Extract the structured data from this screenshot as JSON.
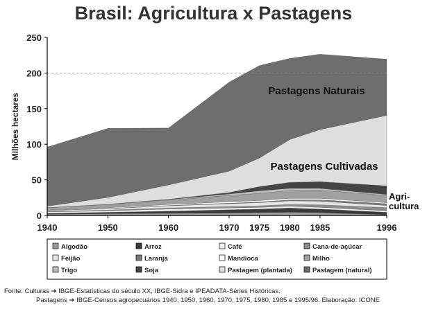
{
  "chart_data": {
    "type": "area",
    "title": "Brasil: Agricultura x Pastagens",
    "ylabel": "Milhões hectares",
    "xlabel": "",
    "x": [
      "1940",
      "1950",
      "1960",
      "1970",
      "1975",
      "1980",
      "1985",
      "1996"
    ],
    "ylim": [
      0,
      250
    ],
    "yticks": [
      "0",
      "50",
      "100",
      "150",
      "200",
      "250"
    ],
    "series": [
      {
        "name": "Algodão",
        "values": [
          1.5,
          2.5,
          3,
          3.5,
          4,
          4.5,
          4,
          1
        ],
        "color": "#9a9a9a"
      },
      {
        "name": "Arroz",
        "values": [
          1.5,
          2,
          3,
          4.5,
          5,
          6,
          5,
          3.5
        ],
        "color": "#3a3a3a"
      },
      {
        "name": "Café",
        "values": [
          2,
          2,
          3,
          2.5,
          2.5,
          2.5,
          2.5,
          2
        ],
        "color": "#f2f2f2"
      },
      {
        "name": "Cana-de-açúcar",
        "values": [
          0.5,
          1,
          1.5,
          2,
          2,
          2.5,
          3.5,
          4.5
        ],
        "color": "#8c8c8c"
      },
      {
        "name": "Feijão",
        "values": [
          1.5,
          2,
          3,
          4,
          4.5,
          5,
          5,
          3
        ],
        "color": "#e6e6e6"
      },
      {
        "name": "Laranja",
        "values": [
          0.2,
          0.3,
          0.5,
          0.7,
          1,
          1.5,
          2,
          2.5
        ],
        "color": "#7a7a7a"
      },
      {
        "name": "Mandioca",
        "values": [
          0.5,
          1,
          1.5,
          2,
          2,
          2,
          2,
          1.5
        ],
        "color": "#ffffff"
      },
      {
        "name": "Milho",
        "values": [
          3,
          4.5,
          6,
          9,
          10,
          11,
          11.5,
          10
        ],
        "color": "#a0a0a0"
      },
      {
        "name": "Trigo",
        "values": [
          0.3,
          0.5,
          0.8,
          2,
          3.5,
          3,
          2.5,
          1.5
        ],
        "color": "#bdbdbd"
      },
      {
        "name": "Soja",
        "values": [
          0,
          0,
          0.5,
          2,
          6,
          8.5,
          9.5,
          12
        ],
        "color": "#444444"
      },
      {
        "name": "Pastagem (plantada)",
        "values": [
          2,
          9.5,
          20,
          30,
          40,
          60,
          73,
          99
        ],
        "color": "#dedede"
      },
      {
        "name": "Pastagem (natural)",
        "values": [
          83,
          97,
          80,
          125,
          130,
          114,
          106,
          79
        ],
        "color": "#6e6e6e"
      }
    ],
    "area_labels": {
      "natural": "Pastagens Naturais",
      "cultivated": "Pastagens Cultivadas",
      "agri_line1": "Agri-",
      "agri_line2": "cultura"
    },
    "grid": "dashed horizontal at 200",
    "legend_position": "bottom"
  },
  "source": {
    "line1": "Fonte:  Culturas ➔ IBGE-Estatísticas do século XX, IBGE-Sidra e IPEADATA-Séries Históricas.",
    "line2": "Pastagens ➔ IBGE-Censos agropecuários 1940, 1950, 1960, 1970, 1975, 1980, 1985 e 1995/96. Elaboração: ICONE"
  }
}
